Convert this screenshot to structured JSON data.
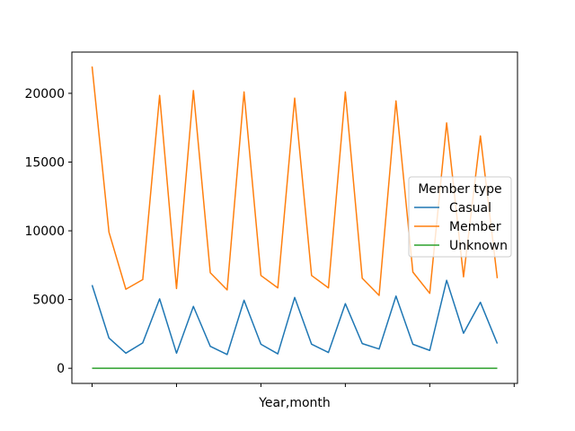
{
  "chart_data": {
    "type": "line",
    "title": "",
    "xlabel": "Year,month",
    "ylabel": "",
    "ylim": [
      -1100,
      23000
    ],
    "yticks": [
      0,
      5000,
      10000,
      15000,
      20000
    ],
    "ytick_labels": [
      "0",
      "5000",
      "10000",
      "15000",
      "20000"
    ],
    "grid": false,
    "legend": {
      "title": "Member type",
      "placement": "center-right"
    },
    "series": [
      {
        "name": "Casual",
        "color": "#1f77b4",
        "values": [
          6050,
          2200,
          1100,
          1850,
          5050,
          1100,
          4500,
          1600,
          1000,
          4950,
          1750,
          1050,
          5150,
          1750,
          1150,
          4700,
          1800,
          1400,
          5250,
          1750,
          1300,
          6400,
          2550,
          4800,
          1800
        ]
      },
      {
        "name": "Member",
        "color": "#ff7f0e",
        "values": [
          21950,
          9900,
          5750,
          6450,
          19850,
          5800,
          20200,
          6950,
          5700,
          20100,
          6750,
          5850,
          19650,
          6750,
          5850,
          20100,
          6550,
          5300,
          19450,
          7000,
          5450,
          17850,
          6650,
          16900,
          6550
        ]
      },
      {
        "name": "Unknown",
        "color": "#2ca02c",
        "values": [
          0,
          0,
          0,
          0,
          0,
          0,
          0,
          0,
          0,
          0,
          0,
          0,
          0,
          0,
          0,
          0,
          0,
          0,
          0,
          0,
          0,
          0,
          0,
          0,
          0
        ]
      }
    ]
  }
}
